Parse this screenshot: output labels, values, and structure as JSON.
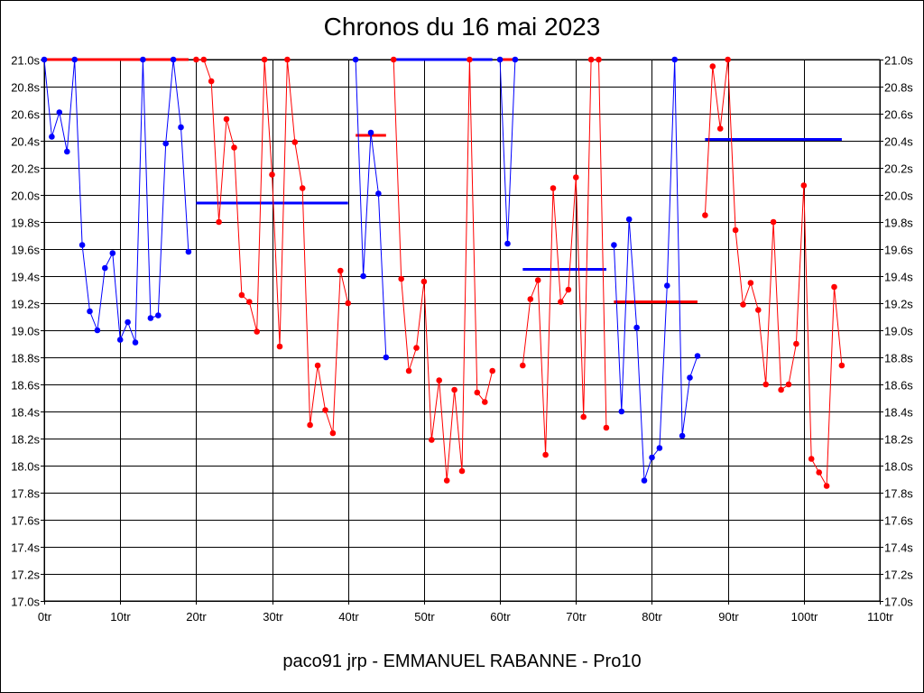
{
  "chart_data": {
    "type": "line",
    "title": "Chronos du 16 mai 2023",
    "footer": "paco91 jrp - EMMANUEL RABANNE - Pro10",
    "xlabel": "",
    "ylabel": "",
    "xlim": [
      0,
      110
    ],
    "ylim": [
      17.0,
      21.0
    ],
    "grid": true,
    "x_ticks": [
      "0tr",
      "10tr",
      "20tr",
      "30tr",
      "40tr",
      "50tr",
      "60tr",
      "70tr",
      "80tr",
      "90tr",
      "100tr",
      "110tr"
    ],
    "x_tick_values": [
      0,
      10,
      20,
      30,
      40,
      50,
      60,
      70,
      80,
      90,
      100,
      110
    ],
    "y_ticks": [
      "17.0s",
      "17.2s",
      "17.4s",
      "17.6s",
      "17.8s",
      "18.0s",
      "18.2s",
      "18.4s",
      "18.6s",
      "18.8s",
      "19.0s",
      "19.2s",
      "19.4s",
      "19.6s",
      "19.8s",
      "20.0s",
      "20.2s",
      "20.4s",
      "20.6s",
      "20.8s",
      "21.0s"
    ],
    "y_tick_values": [
      17.0,
      17.2,
      17.4,
      17.6,
      17.8,
      18.0,
      18.2,
      18.4,
      18.6,
      18.8,
      19.0,
      19.2,
      19.4,
      19.6,
      19.8,
      20.0,
      20.2,
      20.4,
      20.6,
      20.8,
      21.0
    ],
    "colors": {
      "blue": "#0000ff",
      "red": "#ff0000",
      "grid": "#000000"
    },
    "series": [
      {
        "color": "#0000ff",
        "x": [
          0,
          1,
          2,
          3,
          4,
          5,
          6,
          7,
          8,
          9,
          10,
          11,
          12,
          13,
          14,
          15,
          16,
          17,
          18,
          19
        ],
        "y": [
          21.0,
          20.43,
          20.61,
          20.32,
          21.0,
          19.63,
          19.14,
          19.0,
          19.46,
          19.57,
          18.93,
          19.06,
          18.91,
          21.0,
          19.09,
          19.11,
          20.38,
          21.0,
          20.5,
          19.58
        ]
      },
      {
        "color": "#ff0000",
        "x": [
          20,
          21,
          22,
          23,
          24,
          25,
          26,
          27,
          28,
          29,
          30,
          31,
          32,
          33,
          34,
          35,
          36,
          37,
          38,
          39,
          40
        ],
        "y": [
          21.0,
          21.0,
          20.84,
          19.8,
          20.56,
          20.35,
          19.26,
          19.21,
          18.99,
          21.0,
          20.15,
          18.88,
          21.0,
          20.39,
          20.05,
          18.3,
          18.74,
          18.41,
          18.24,
          19.44,
          19.2
        ]
      },
      {
        "color": "#0000ff",
        "x": [
          41,
          42,
          43,
          44,
          45
        ],
        "y": [
          21.0,
          19.4,
          20.46,
          20.01,
          18.8
        ]
      },
      {
        "color": "#ff0000",
        "x": [
          46,
          47,
          48,
          49,
          50,
          51,
          52,
          53,
          54,
          55,
          56,
          57,
          58,
          59
        ],
        "y": [
          21.0,
          19.38,
          18.7,
          18.87,
          19.36,
          18.19,
          18.63,
          17.89,
          18.56,
          17.96,
          21.0,
          18.54,
          18.47,
          18.7
        ]
      },
      {
        "color": "#0000ff",
        "x": [
          60,
          61,
          62
        ],
        "y": [
          21.0,
          19.64,
          21.0
        ]
      },
      {
        "color": "#ff0000",
        "x": [
          63,
          64,
          65,
          66,
          67,
          68,
          69,
          70,
          71,
          72,
          73,
          74
        ],
        "y": [
          18.74,
          19.23,
          19.37,
          18.08,
          20.05,
          19.21,
          19.3,
          20.13,
          18.36,
          21.0,
          21.0,
          18.28
        ]
      },
      {
        "color": "#0000ff",
        "x": [
          75,
          76,
          77,
          78,
          79,
          80,
          81,
          82,
          83,
          84,
          85,
          86
        ],
        "y": [
          19.63,
          18.4,
          19.82,
          19.02,
          17.89,
          18.06,
          18.13,
          19.33,
          21.0,
          18.22,
          18.65,
          18.81
        ]
      },
      {
        "color": "#ff0000",
        "x": [
          87,
          88,
          89,
          90,
          91,
          92,
          93,
          94,
          95,
          96,
          97,
          98,
          99,
          100,
          101,
          102,
          103,
          104,
          105
        ],
        "y": [
          19.85,
          20.95,
          20.49,
          21.0,
          19.74,
          19.19,
          19.35,
          19.15,
          18.6,
          19.8,
          18.56,
          18.6,
          18.9,
          20.07,
          18.05,
          17.95,
          17.85,
          19.32,
          18.74
        ]
      }
    ],
    "averages": [
      {
        "color": "#ff0000",
        "x_start": 0,
        "x_end": 19,
        "value": 21.0
      },
      {
        "color": "#0000ff",
        "x_start": 20,
        "x_end": 40,
        "value": 19.94
      },
      {
        "color": "#ff0000",
        "x_start": 41,
        "x_end": 45,
        "value": 20.44
      },
      {
        "color": "#0000ff",
        "x_start": 46,
        "x_end": 59,
        "value": 21.0
      },
      {
        "color": "#ff0000",
        "x_start": 60,
        "x_end": 62,
        "value": 21.0
      },
      {
        "color": "#0000ff",
        "x_start": 63,
        "x_end": 74,
        "value": 19.45
      },
      {
        "color": "#ff0000",
        "x_start": 75,
        "x_end": 86,
        "value": 19.21
      },
      {
        "color": "#0000ff",
        "x_start": 87,
        "x_end": 105,
        "value": 20.41
      }
    ]
  }
}
